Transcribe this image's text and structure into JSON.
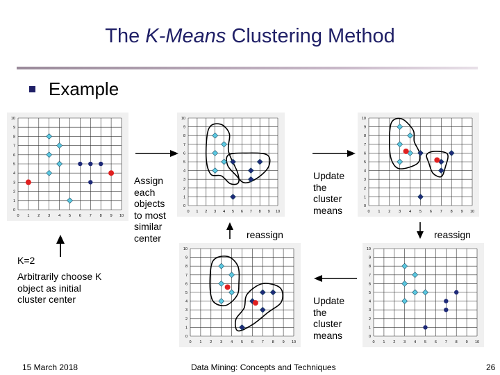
{
  "slide": {
    "title_prefix": "The ",
    "title_italic": "K-Means",
    "title_suffix": " Clustering Method",
    "bullet": "Example",
    "captions": {
      "assign": [
        "Assign",
        "each",
        "objects",
        "to most",
        "similar",
        "center"
      ],
      "update_top": [
        "Update",
        "the",
        "cluster",
        "means"
      ],
      "reassign_top": "reassign",
      "reassign_right": "reassign",
      "k": "K=2",
      "choose": [
        "Arbitrarily choose K",
        "object as initial",
        "cluster center"
      ],
      "update_bottom": [
        "Update",
        "the",
        "cluster",
        "means"
      ]
    },
    "footer": {
      "date": "15 March 2018",
      "course": "Data Mining: Concepts and Techniques",
      "page": "26"
    },
    "colors": {
      "title": "#1f1f66",
      "cluster_a": "#5bc8e0",
      "cluster_b": "#1e2a78",
      "center": "#e02020",
      "grid": "#333333",
      "panel_bg": "#f0f0f0"
    }
  },
  "chart_data": [
    {
      "type": "scatter",
      "panel": "initial",
      "xlim": [
        0,
        10
      ],
      "ylim": [
        0,
        10
      ],
      "ticks": [
        "0",
        "1",
        "2",
        "3",
        "4",
        "5",
        "6",
        "7",
        "8",
        "9",
        "10"
      ],
      "series": [
        {
          "marker": "diamond-light",
          "points": [
            [
              3,
              8
            ],
            [
              4,
              7
            ],
            [
              3,
              6
            ],
            [
              4,
              5
            ],
            [
              3,
              4
            ],
            [
              5,
              1
            ]
          ]
        },
        {
          "marker": "dot-dark",
          "points": [
            [
              6,
              5
            ],
            [
              7,
              5
            ],
            [
              8,
              5
            ],
            [
              7,
              3
            ]
          ]
        },
        {
          "marker": "center",
          "points": [
            [
              1,
              3
            ],
            [
              9,
              4
            ]
          ]
        }
      ],
      "enclosures": []
    },
    {
      "type": "scatter",
      "panel": "assigned",
      "xlim": [
        0,
        10
      ],
      "ylim": [
        0,
        10
      ],
      "ticks": [
        "0",
        "1",
        "2",
        "3",
        "4",
        "5",
        "6",
        "7",
        "8",
        "9",
        "10"
      ],
      "series": [
        {
          "marker": "diamond-light",
          "points": [
            [
              3,
              8
            ],
            [
              4,
              7
            ],
            [
              3,
              6
            ],
            [
              4,
              5
            ],
            [
              3,
              4
            ]
          ]
        },
        {
          "marker": "diamond-dark",
          "points": [
            [
              5,
              5
            ],
            [
              7,
              4
            ],
            [
              8,
              5
            ],
            [
              7,
              3
            ],
            [
              5,
              1
            ]
          ]
        }
      ],
      "enclosures": [
        [
          [
            2.3,
            8.8
          ],
          [
            3.6,
            9.3
          ],
          [
            4.6,
            8.2
          ],
          [
            4.5,
            6.2
          ],
          [
            5.5,
            3.8
          ],
          [
            5.6,
            2.6
          ],
          [
            4.7,
            2.5
          ],
          [
            3.7,
            3.4
          ],
          [
            2.5,
            3.6
          ],
          [
            2.0,
            5.6
          ]
        ],
        [
          [
            4.5,
            5.8
          ],
          [
            6.5,
            6.0
          ],
          [
            8.8,
            5.8
          ],
          [
            9.0,
            4.5
          ],
          [
            7.8,
            3.2
          ],
          [
            6.3,
            2.6
          ],
          [
            5.3,
            3.5
          ],
          [
            4.4,
            4.6
          ]
        ]
      ]
    },
    {
      "type": "scatter",
      "panel": "updated-means",
      "xlim": [
        0,
        10
      ],
      "ylim": [
        0,
        10
      ],
      "ticks": [
        "0",
        "1",
        "2",
        "3",
        "4",
        "5",
        "6",
        "7",
        "8",
        "9",
        "10"
      ],
      "series": [
        {
          "marker": "diamond-light",
          "points": [
            [
              3,
              9
            ],
            [
              4,
              8
            ],
            [
              3,
              7
            ],
            [
              4,
              6
            ],
            [
              3,
              5
            ]
          ]
        },
        {
          "marker": "diamond-dark",
          "points": [
            [
              5,
              6
            ],
            [
              7,
              5
            ],
            [
              8,
              6
            ],
            [
              7,
              4
            ],
            [
              5,
              1
            ]
          ]
        },
        {
          "marker": "center",
          "points": [
            [
              3.6,
              6.2
            ],
            [
              6.6,
              5.2
            ]
          ]
        }
      ],
      "enclosures": [
        [
          [
            2.2,
            9.5
          ],
          [
            3.2,
            9.9
          ],
          [
            4.3,
            8.6
          ],
          [
            4.4,
            7.3
          ],
          [
            4.9,
            6.0
          ],
          [
            4.7,
            4.8
          ],
          [
            3.0,
            4.2
          ],
          [
            2.2,
            5.2
          ],
          [
            2.0,
            7.2
          ]
        ],
        [
          [
            5.6,
            5.8
          ],
          [
            6.3,
            6.2
          ],
          [
            7.6,
            5.9
          ],
          [
            7.4,
            4.4
          ],
          [
            7.0,
            3.3
          ],
          [
            6.2,
            3.7
          ],
          [
            5.8,
            4.9
          ]
        ]
      ]
    },
    {
      "type": "scatter",
      "panel": "reassigned",
      "xlim": [
        0,
        10
      ],
      "ylim": [
        0,
        10
      ],
      "ticks": [
        "0",
        "1",
        "2",
        "3",
        "4",
        "5",
        "6",
        "7",
        "8",
        "9",
        "10"
      ],
      "series": [
        {
          "marker": "diamond-light",
          "points": [
            [
              3,
              8
            ],
            [
              4,
              7
            ],
            [
              3,
              6
            ],
            [
              4,
              5
            ],
            [
              3,
              4
            ]
          ]
        },
        {
          "marker": "diamond-dark",
          "points": [
            [
              6,
              4
            ],
            [
              7,
              5
            ],
            [
              8,
              5
            ],
            [
              7,
              3
            ],
            [
              5,
              1
            ]
          ]
        },
        {
          "marker": "center",
          "points": [
            [
              3.6,
              5.6
            ],
            [
              6.3,
              3.8
            ]
          ]
        }
      ],
      "enclosures": [
        [
          [
            2.2,
            8.6
          ],
          [
            3.6,
            9.1
          ],
          [
            4.6,
            8.0
          ],
          [
            4.7,
            6.0
          ],
          [
            4.5,
            4.6
          ],
          [
            3.4,
            3.5
          ],
          [
            2.2,
            4.0
          ],
          [
            1.9,
            6.0
          ]
        ],
        [
          [
            5.5,
            4.8
          ],
          [
            7.0,
            6.0
          ],
          [
            8.7,
            5.5
          ],
          [
            8.8,
            3.9
          ],
          [
            7.5,
            2.7
          ],
          [
            6.0,
            1.3
          ],
          [
            4.6,
            0.6
          ],
          [
            4.4,
            1.9
          ],
          [
            5.2,
            3.2
          ]
        ]
      ]
    },
    {
      "type": "scatter",
      "panel": "result",
      "xlim": [
        0,
        10
      ],
      "ylim": [
        0,
        10
      ],
      "ticks": [
        "0",
        "1",
        "2",
        "3",
        "4",
        "5",
        "6",
        "7",
        "8",
        "9",
        "10"
      ],
      "series": [
        {
          "marker": "diamond-light",
          "points": [
            [
              3,
              8
            ],
            [
              4,
              7
            ],
            [
              3,
              6
            ],
            [
              4,
              5
            ],
            [
              3,
              4
            ],
            [
              5,
              5
            ]
          ]
        },
        {
          "marker": "dot-dark",
          "points": [
            [
              7,
              4
            ],
            [
              8,
              5
            ],
            [
              7,
              3
            ],
            [
              5,
              1
            ]
          ]
        }
      ],
      "enclosures": []
    }
  ]
}
